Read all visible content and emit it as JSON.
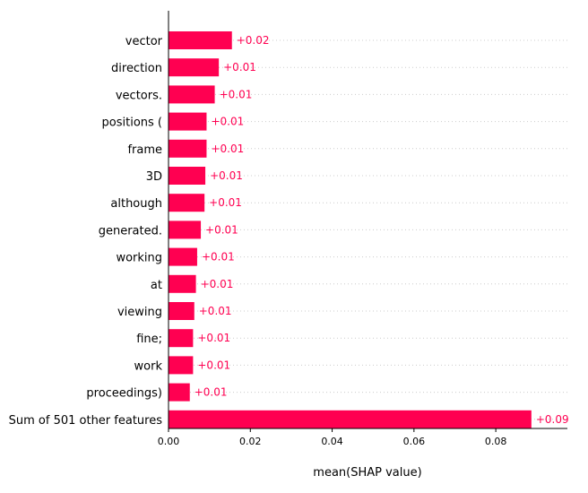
{
  "chart_data": {
    "type": "bar",
    "orientation": "horizontal",
    "categories": [
      "vector",
      "direction",
      "vectors.",
      "positions (",
      "frame",
      "3D",
      "although",
      "generated.",
      "working",
      "at",
      "viewing",
      "fine;",
      "work",
      "proceedings)",
      "Sum of 501 other features"
    ],
    "values": [
      0.0155,
      0.0123,
      0.0113,
      0.0093,
      0.0093,
      0.009,
      0.0088,
      0.0079,
      0.007,
      0.0067,
      0.0063,
      0.006,
      0.006,
      0.0052,
      0.0887
    ],
    "value_labels": [
      "+0.02",
      "+0.01",
      "+0.01",
      "+0.01",
      "+0.01",
      "+0.01",
      "+0.01",
      "+0.01",
      "+0.01",
      "+0.01",
      "+0.01",
      "+0.01",
      "+0.01",
      "+0.01",
      "+0.09"
    ],
    "xlabel": "mean(SHAP value)",
    "ylabel": "",
    "xlim": [
      0.0,
      0.0975
    ],
    "xticks": [
      0.0,
      0.02,
      0.04,
      0.06,
      0.08
    ],
    "xtick_labels": [
      "0.00",
      "0.02",
      "0.04",
      "0.06",
      "0.08"
    ],
    "grid": "horizontal dotted",
    "bar_color": "#ff0051",
    "label_color": "#ff0051",
    "gridline_color": "#cccccc"
  }
}
